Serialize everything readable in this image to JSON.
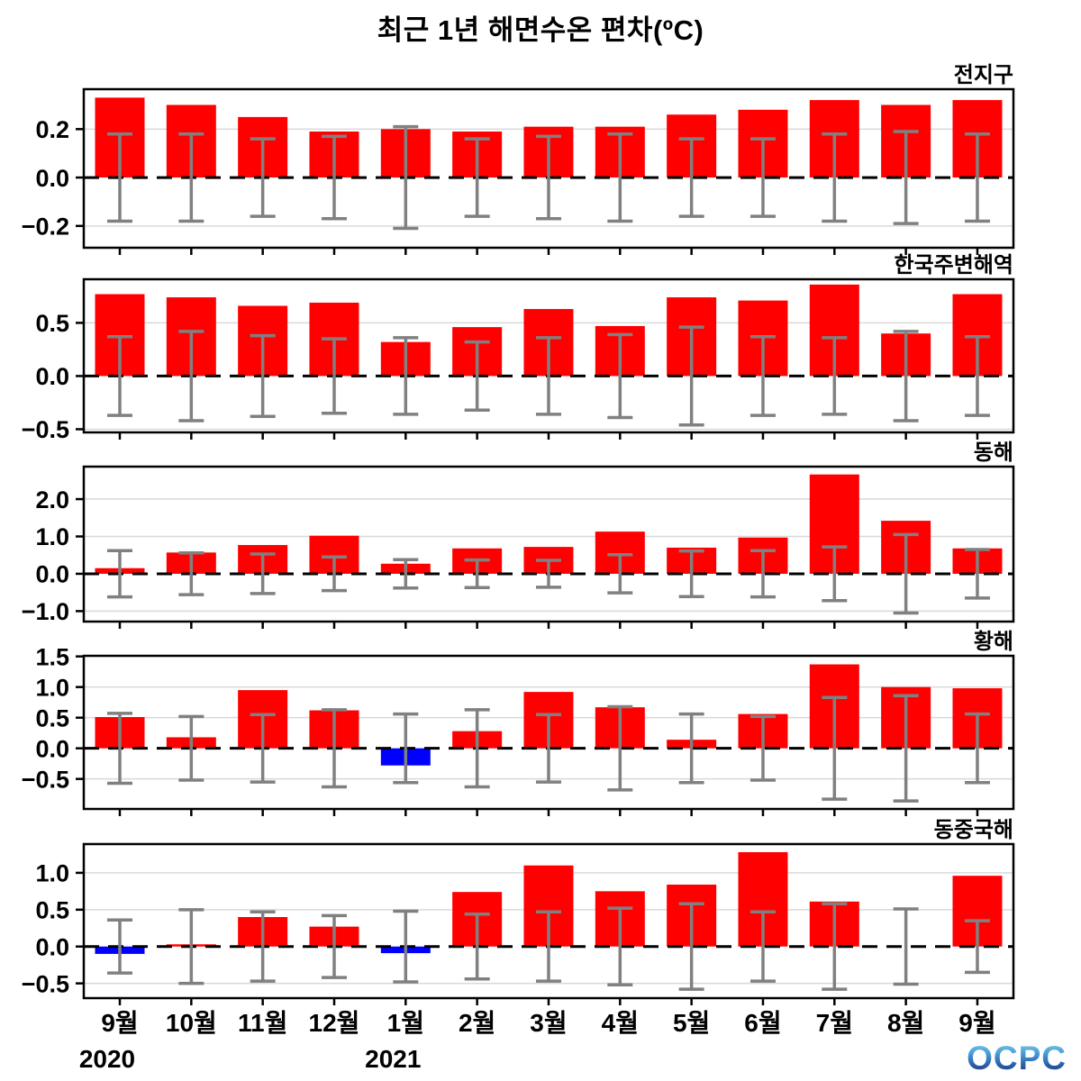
{
  "chart_data": {
    "type": "bar",
    "title": "최근 1년 해면수온 편차(ºC)",
    "categories": [
      "9월",
      "10월",
      "11월",
      "12월",
      "1월",
      "2월",
      "3월",
      "4월",
      "5월",
      "6월",
      "7월",
      "8월",
      "9월"
    ],
    "year_labels": [
      {
        "text": "2020",
        "month_index": 0
      },
      {
        "text": "2021",
        "month_index": 4
      }
    ],
    "legend_position": "none",
    "grid": true,
    "colors": {
      "positive_bar": "#ff0000",
      "negative_bar": "#0000ff",
      "error_bar": "#808080",
      "gridline": "#d9d9d9",
      "zero_line": "#000000",
      "axis": "#000000"
    },
    "panels": [
      {
        "label": "전지구",
        "ylim": [
          -0.29,
          0.365
        ],
        "yticks": [
          {
            "value": 0.2,
            "label": "0.2"
          },
          {
            "value": 0.0,
            "label": "0.0"
          },
          {
            "value": -0.2,
            "label": "−0.2"
          }
        ],
        "values": [
          0.33,
          0.3,
          0.25,
          0.19,
          0.2,
          0.19,
          0.21,
          0.21,
          0.26,
          0.28,
          0.32,
          0.3,
          0.32
        ],
        "errors": [
          0.18,
          0.18,
          0.16,
          0.17,
          0.21,
          0.16,
          0.17,
          0.18,
          0.16,
          0.16,
          0.18,
          0.19,
          0.18
        ]
      },
      {
        "label": "한국주변해역",
        "ylim": [
          -0.53,
          0.91
        ],
        "yticks": [
          {
            "value": 0.5,
            "label": "0.5"
          },
          {
            "value": 0.0,
            "label": "0.0"
          },
          {
            "value": -0.5,
            "label": "−0.5"
          }
        ],
        "values": [
          0.77,
          0.74,
          0.66,
          0.69,
          0.32,
          0.46,
          0.63,
          0.47,
          0.74,
          0.71,
          0.86,
          0.4,
          0.77
        ],
        "errors": [
          0.37,
          0.42,
          0.38,
          0.35,
          0.36,
          0.32,
          0.36,
          0.39,
          0.46,
          0.37,
          0.36,
          0.42,
          0.37
        ]
      },
      {
        "label": "동해",
        "ylim": [
          -1.28,
          2.87
        ],
        "yticks": [
          {
            "value": 2.0,
            "label": "2.0"
          },
          {
            "value": 1.0,
            "label": "1.0"
          },
          {
            "value": 0.0,
            "label": "0.0"
          },
          {
            "value": -1.0,
            "label": "−1.0"
          }
        ],
        "values": [
          0.15,
          0.57,
          0.77,
          1.02,
          0.27,
          0.68,
          0.72,
          1.13,
          0.7,
          0.97,
          2.66,
          1.42,
          0.68
        ],
        "errors": [
          0.62,
          0.56,
          0.53,
          0.45,
          0.38,
          0.37,
          0.36,
          0.51,
          0.61,
          0.62,
          0.72,
          1.05,
          0.65
        ]
      },
      {
        "label": "황해",
        "ylim": [
          -0.99,
          1.51
        ],
        "yticks": [
          {
            "value": 1.5,
            "label": "1.5"
          },
          {
            "value": 1.0,
            "label": "1.0"
          },
          {
            "value": 0.5,
            "label": "0.5"
          },
          {
            "value": 0.0,
            "label": "0.0"
          },
          {
            "value": -0.5,
            "label": "−0.5"
          }
        ],
        "values": [
          0.51,
          0.18,
          0.95,
          0.62,
          -0.28,
          0.28,
          0.92,
          0.67,
          0.14,
          0.56,
          1.37,
          1.0,
          0.98
        ],
        "errors": [
          0.57,
          0.52,
          0.55,
          0.63,
          0.56,
          0.63,
          0.55,
          0.68,
          0.56,
          0.52,
          0.83,
          0.86,
          0.56
        ]
      },
      {
        "label": "동중국해",
        "ylim": [
          -0.7,
          1.39
        ],
        "yticks": [
          {
            "value": 1.0,
            "label": "1.0"
          },
          {
            "value": 0.5,
            "label": "0.5"
          },
          {
            "value": 0.0,
            "label": "0.0"
          },
          {
            "value": -0.5,
            "label": "−0.5"
          }
        ],
        "values": [
          -0.1,
          0.03,
          0.4,
          0.27,
          -0.09,
          0.74,
          1.1,
          0.75,
          0.84,
          1.28,
          0.61,
          0.0,
          0.96
        ],
        "errors": [
          0.36,
          0.5,
          0.47,
          0.42,
          0.48,
          0.44,
          0.47,
          0.52,
          0.58,
          0.47,
          0.58,
          0.51,
          0.35
        ]
      }
    ],
    "logo": "OCPC"
  }
}
